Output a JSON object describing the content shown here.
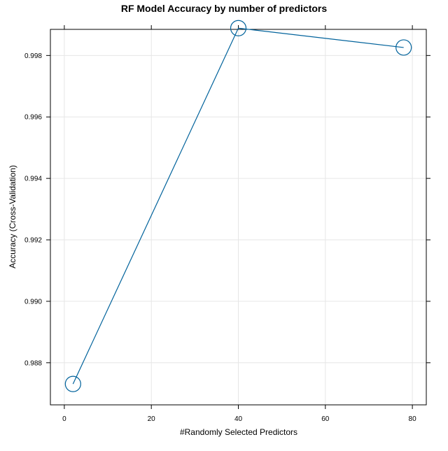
{
  "colors": {
    "series": "#0080ff",
    "line": "#00629b",
    "grid": "#e6e6e6",
    "axis": "#000000",
    "background": "#ffffff"
  },
  "chart_data": {
    "type": "line",
    "title": "RF Model Accuracy by number of predictors",
    "xlabel": "#Randomly Selected Predictors",
    "ylabel": "Accuracy (Cross-Validation)",
    "x_ticks": [
      0,
      20,
      40,
      60,
      80
    ],
    "y_ticks": [
      0.988,
      0.99,
      0.992,
      0.994,
      0.996,
      0.998
    ],
    "xlim": [
      -3.2,
      83.2
    ],
    "ylim": [
      0.98663,
      0.99885
    ],
    "grid": true,
    "marker": "open-circle",
    "series": [
      {
        "x": [
          2,
          40,
          78
        ],
        "y": [
          0.98731,
          0.99889,
          0.99826
        ]
      }
    ]
  }
}
